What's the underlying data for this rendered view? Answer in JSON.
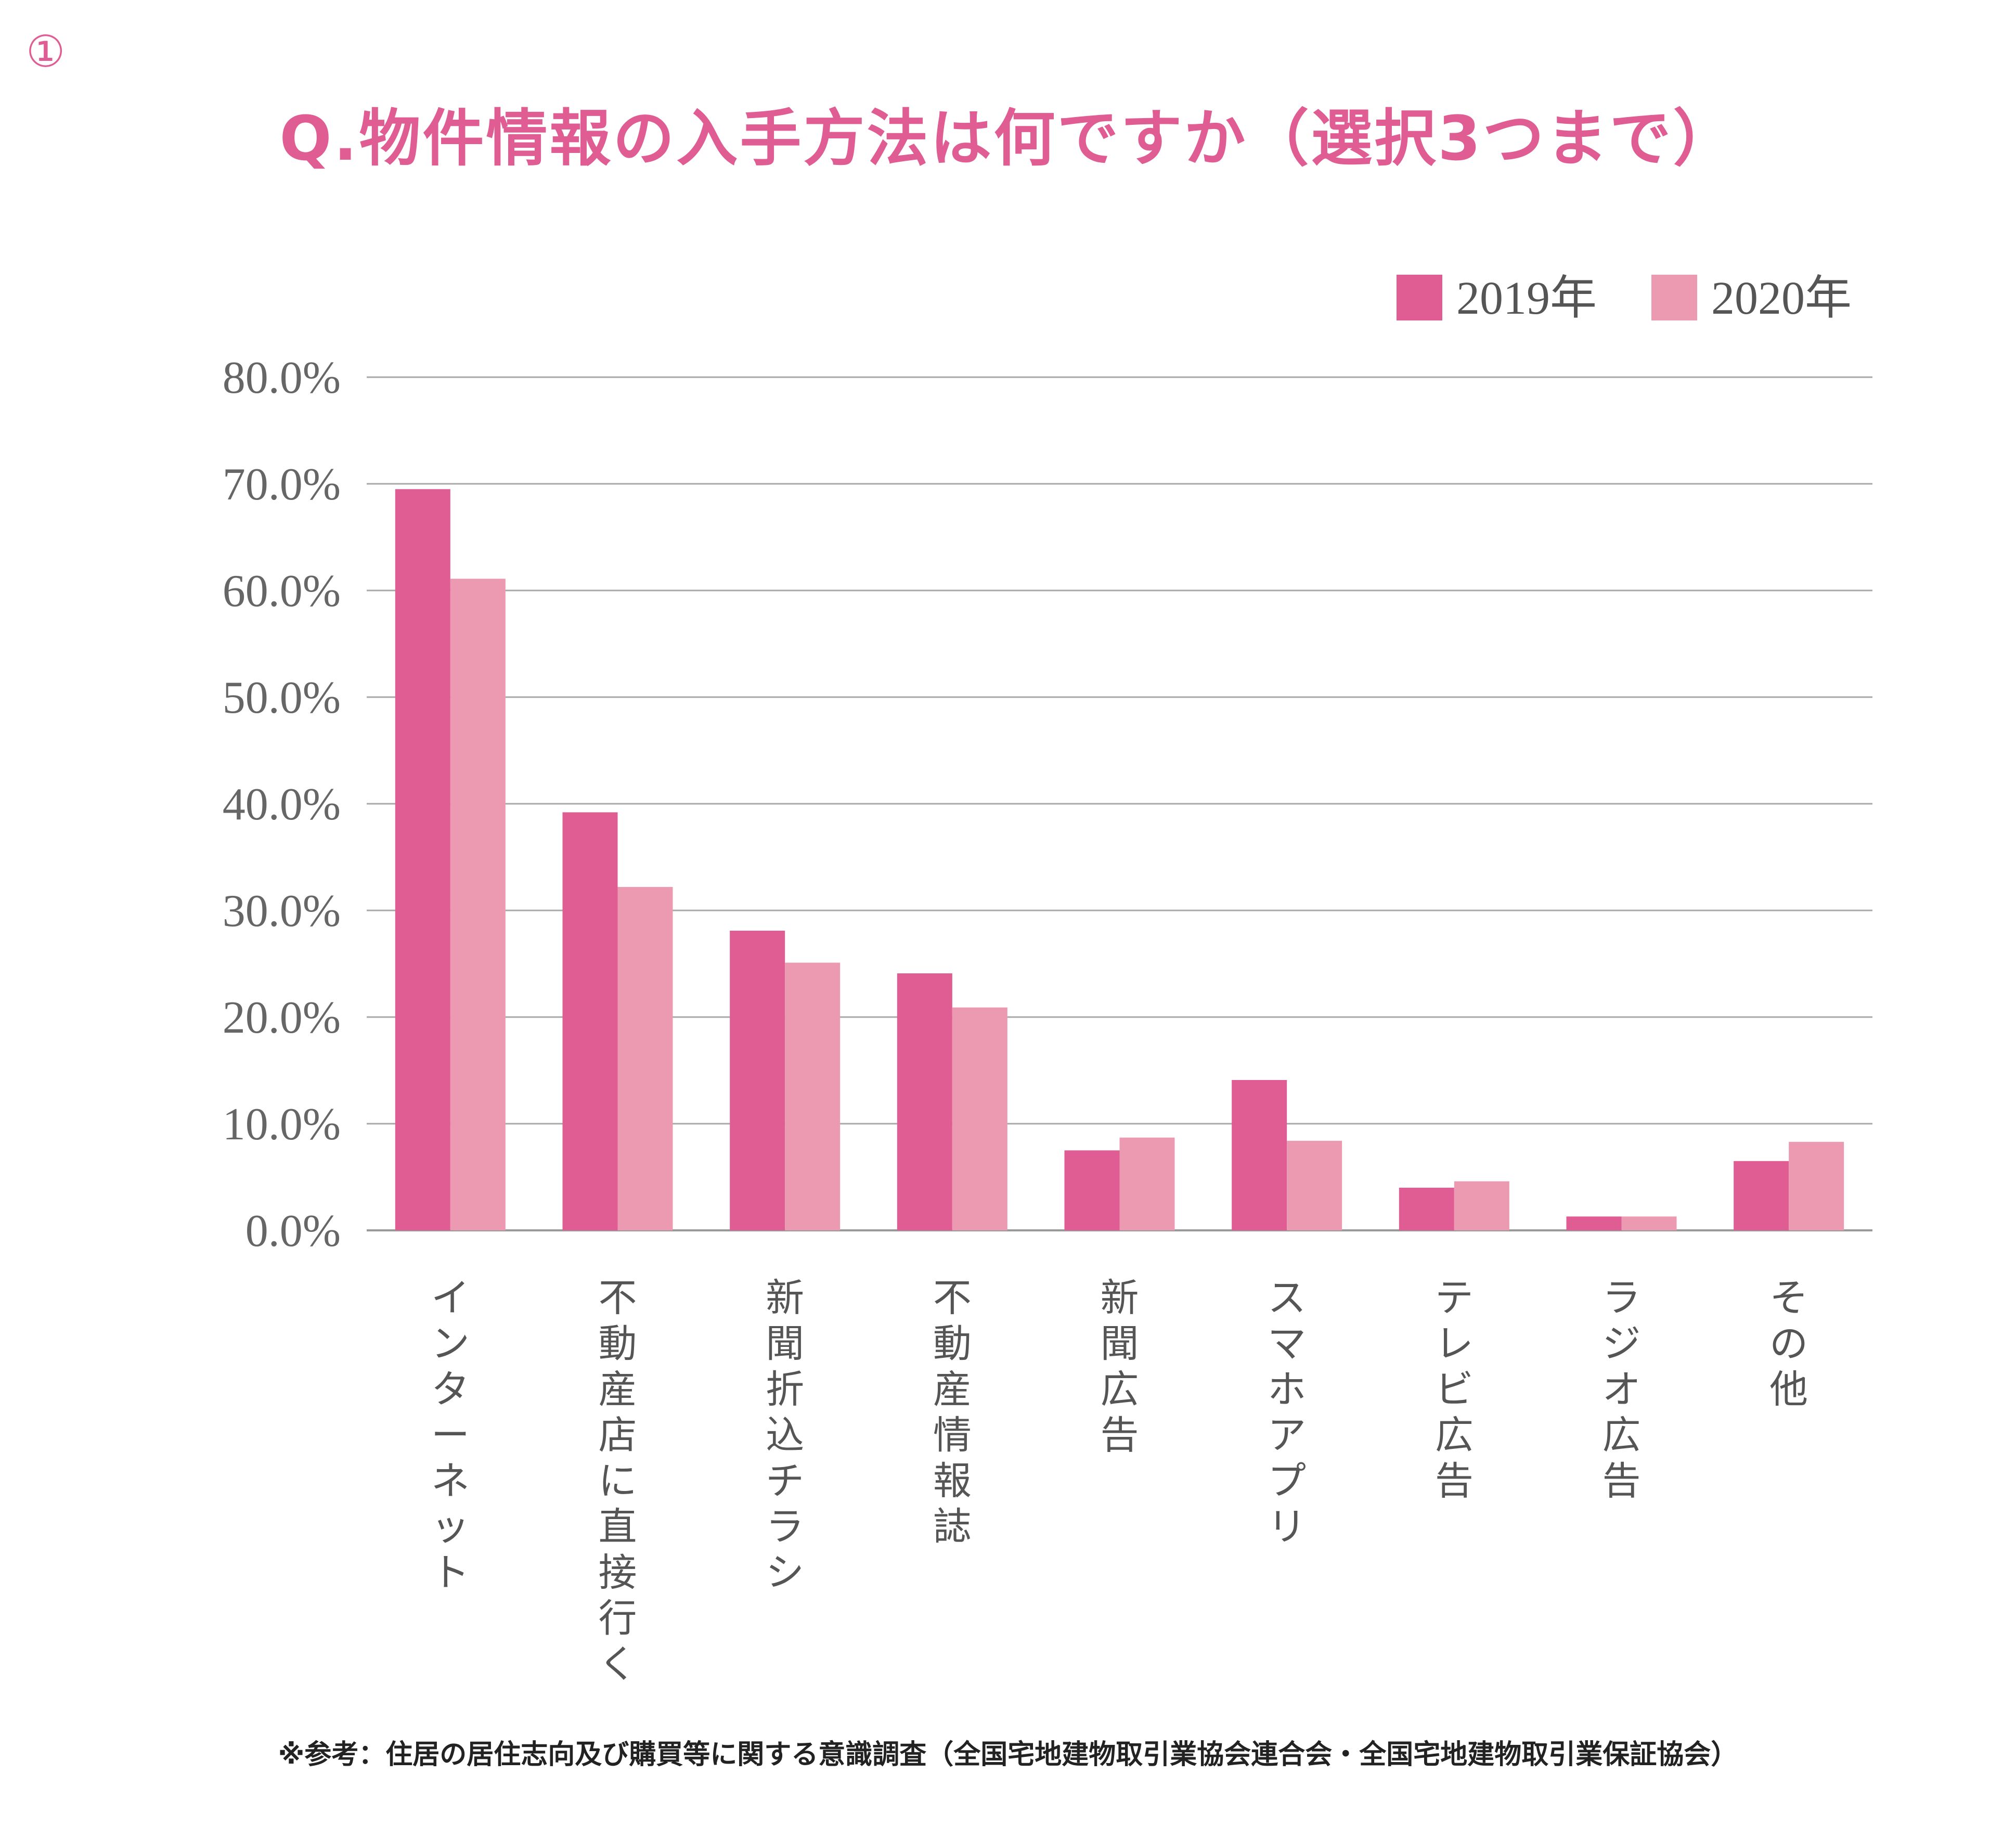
{
  "marker": "①",
  "source_note": "※参考：住居の居住志向及び購買等に関する意識調査（全国宅地建物取引業協会連合会・全国宅地建物取引業保証協会）",
  "chart_data": {
    "type": "bar",
    "title": "Q.物件情報の入手方法は何ですか（選択3つまで）",
    "categories": [
      "インターネット",
      "不動産店に直接行く",
      "新聞折込チラシ",
      "不動産情報誌",
      "新聞広告",
      "スマホアプリ",
      "テレビ広告",
      "ラジオ広告",
      "その他"
    ],
    "series": [
      {
        "name": "2019年",
        "color": "#e05d93",
        "values": [
          69.5,
          39.2,
          28.1,
          24.1,
          7.5,
          14.1,
          4.0,
          1.3,
          6.5
        ]
      },
      {
        "name": "2020年",
        "color": "#eb9ab2",
        "values": [
          61.1,
          32.2,
          25.1,
          20.9,
          8.7,
          8.4,
          4.6,
          1.3,
          8.3
        ]
      }
    ],
    "yticks": [
      "0.0%",
      "10.0%",
      "20.0%",
      "30.0%",
      "40.0%",
      "50.0%",
      "60.0%",
      "70.0%",
      "80.0%"
    ],
    "ylim": [
      0,
      80
    ],
    "grid": true,
    "legend_position": "top-right"
  }
}
